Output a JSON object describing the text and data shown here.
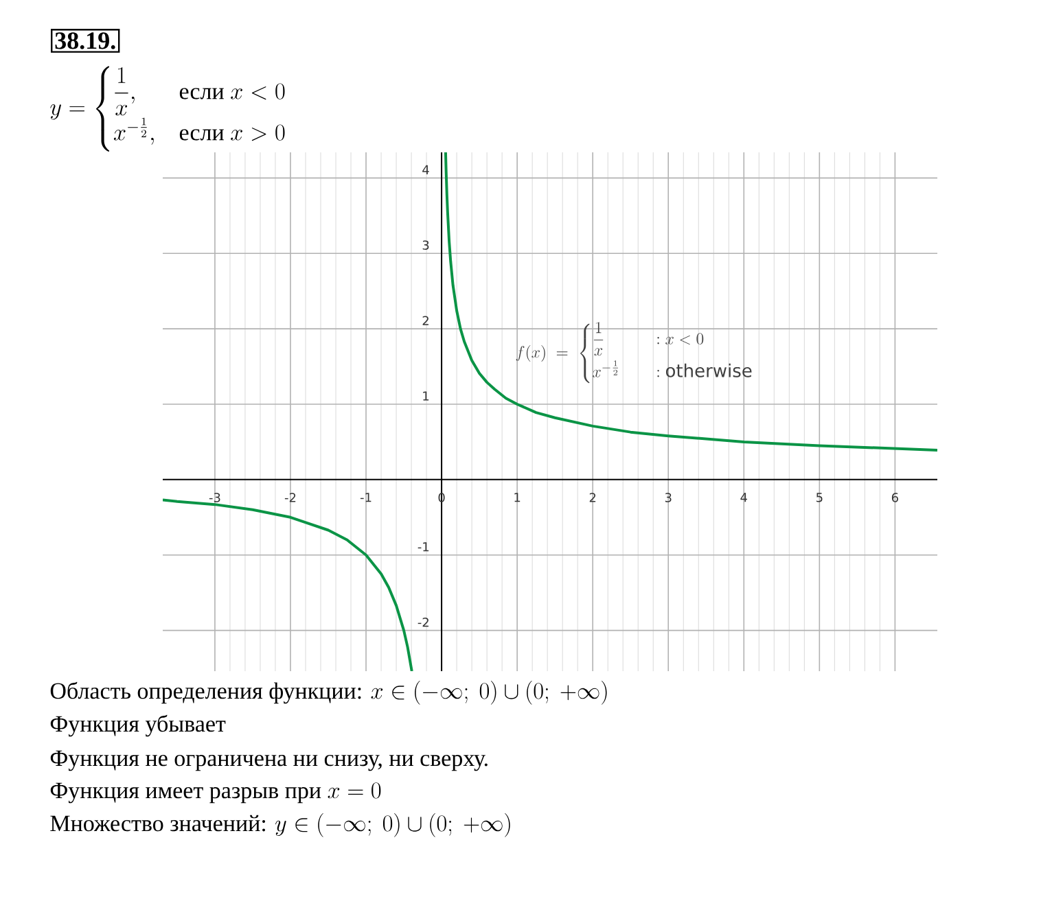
{
  "chart_data": {
    "type": "line",
    "title": "38.19.",
    "subtitle": "y=\\begin{cases}\\dfrac{1}{x}, & \\text{если } x<0\\\\[6pt] x^{-\\frac{1}{2}}, & \\text{если } x>0\\end{cases}",
    "annotations": [
      "f(x)\\;=\\;\\begin{cases}\\dfrac{1}{x} & \\quad : x<0\\\\[6pt] x^{-\\frac{1}{2}} & \\quad : \\text{otherwise}\\end{cases}",
      "\\text{Область определения функции: } x\\in(-\\infty;\\ 0)\\cup(0;\\ +\\infty)",
      "\\text{Функция убывает}",
      "\\text{Функция не ограничена ни снизу, ни сверху.}",
      "\\text{Функция имеет разрыв при } x=0",
      "\\text{Множество значений: } y\\in(-\\infty;\\ 0)\\cup(0;\\ +\\infty)"
    ],
    "series": [
      {
        "color": "#0b9446",
        "x": [
          -3.69,
          -3.5,
          -3,
          -2.5,
          -2,
          -1.5,
          -1.25,
          -1,
          -0.8,
          -0.7,
          -0.6,
          -0.5,
          -0.45,
          -0.394
        ],
        "values": [
          -0.27,
          -0.29,
          -0.33,
          -0.4,
          -0.5,
          -0.67,
          -0.8,
          -1,
          -1.25,
          -1.43,
          -1.67,
          -2,
          -2.22,
          -2.54
        ]
      },
      {
        "color": "#0b9446",
        "x": [
          0.053,
          0.06,
          0.07,
          0.08,
          0.1,
          0.12,
          0.15,
          0.2,
          0.25,
          0.3,
          0.4,
          0.5,
          0.6,
          0.7,
          0.85,
          1,
          1.25,
          1.5,
          2,
          2.5,
          3,
          4,
          5,
          6.56
        ],
        "values": [
          4.34,
          4.08,
          3.78,
          3.54,
          3.16,
          2.89,
          2.58,
          2.24,
          2,
          1.83,
          1.58,
          1.41,
          1.29,
          1.2,
          1.08,
          1,
          0.89,
          0.82,
          0.71,
          0.63,
          0.58,
          0.5,
          0.45,
          0.39
        ]
      }
    ],
    "xlim": [
      -3.69,
      6.56
    ],
    "ylim": [
      -2.54,
      4.34
    ],
    "xticks": [
      -3,
      -2,
      -1,
      0,
      1,
      2,
      3,
      4,
      5,
      6
    ],
    "yticks": [
      -2,
      -1,
      1,
      2,
      3,
      4
    ],
    "grid": true
  }
}
